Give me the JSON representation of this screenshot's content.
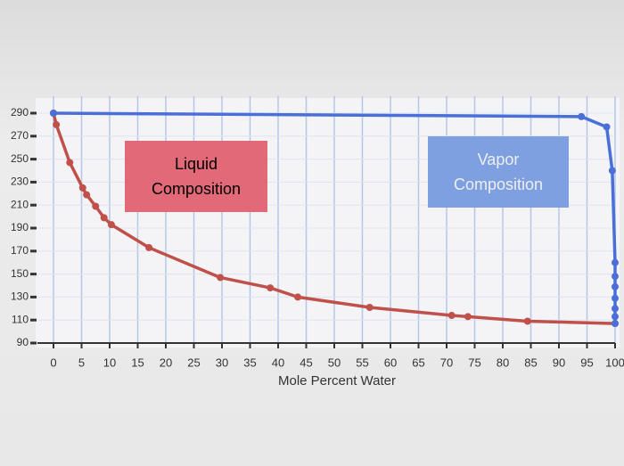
{
  "chart_data": {
    "type": "line",
    "x_label": "Mole Percent Water",
    "xlim": [
      0,
      100
    ],
    "xticks": [
      0,
      5,
      10,
      15,
      20,
      25,
      30,
      35,
      40,
      45,
      50,
      55,
      60,
      65,
      70,
      75,
      80,
      85,
      90,
      95,
      100
    ],
    "ylim": [
      90,
      290
    ],
    "yticks": [
      90,
      110,
      130,
      150,
      170,
      190,
      210,
      230,
      250,
      270,
      290
    ],
    "grid": true,
    "series": [
      {
        "name": "Liquid Composition",
        "color": "#c0504a",
        "box_color": "#e26a78",
        "x": [
          0,
          0.5,
          2.9,
          5.2,
          5.9,
          7.5,
          9.0,
          10.3,
          17,
          29.7,
          38.6,
          43.5,
          56.3,
          70.9,
          73.8,
          84.4,
          100
        ],
        "values": [
          290,
          280,
          247,
          225,
          219,
          209,
          199,
          193,
          173,
          147,
          138,
          130,
          121,
          114,
          113,
          109,
          107
        ]
      },
      {
        "name": "Vapor Composition",
        "color": "#4a6fd8",
        "box_color": "#7ea0e0",
        "x": [
          0,
          94,
          98.5,
          99.5,
          100,
          100,
          100,
          100,
          100,
          100,
          100
        ],
        "values": [
          290,
          287,
          278,
          240,
          160,
          148,
          139,
          129,
          120,
          113,
          107
        ]
      }
    ]
  }
}
